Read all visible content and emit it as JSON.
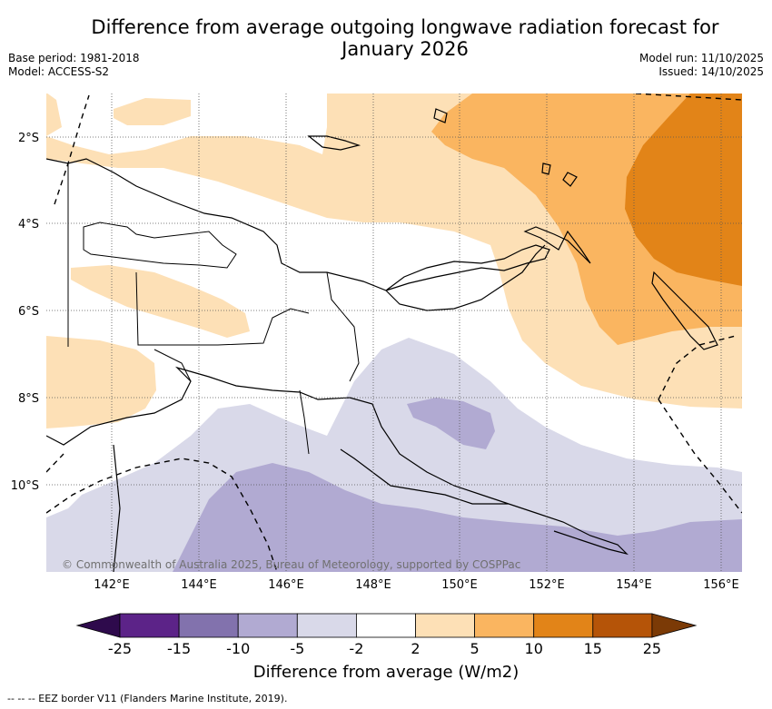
{
  "title_line1": "Difference from average outgoing longwave radiation forecast for",
  "title_line2": "January 2026",
  "base_period": "Base period: 1981-2018",
  "model": "Model: ACCESS-S2",
  "model_run": "Model run: 11/10/2025",
  "issued": "Issued: 14/10/2025",
  "copyright": "© Commonwealth of Australia 2025, Bureau of Meteorology, supported by COSPPac",
  "lon_ticks": [
    "142°E",
    "144°E",
    "146°E",
    "148°E",
    "150°E",
    "152°E",
    "154°E",
    "156°E"
  ],
  "lat_ticks": [
    "2°S",
    "4°S",
    "6°S",
    "8°S",
    "10°S"
  ],
  "colorbar": {
    "labels": [
      "-25",
      "-15",
      "-10",
      "-5",
      "-2",
      "2",
      "5",
      "10",
      "15",
      "25"
    ],
    "colors": [
      "#5c2388",
      "#8272ad",
      "#b1aad2",
      "#d9d9e9",
      "#ffffff",
      "#fde0b6",
      "#fab560",
      "#e28418",
      "#b55408"
    ],
    "extend_low_color": "#2e0a4c",
    "extend_high_color": "#7b3a06",
    "title": "Difference from average (W/m2)"
  },
  "footnote": "-- -- -- EEZ border V11 (Flanders Marine Institute, 2019)."
}
